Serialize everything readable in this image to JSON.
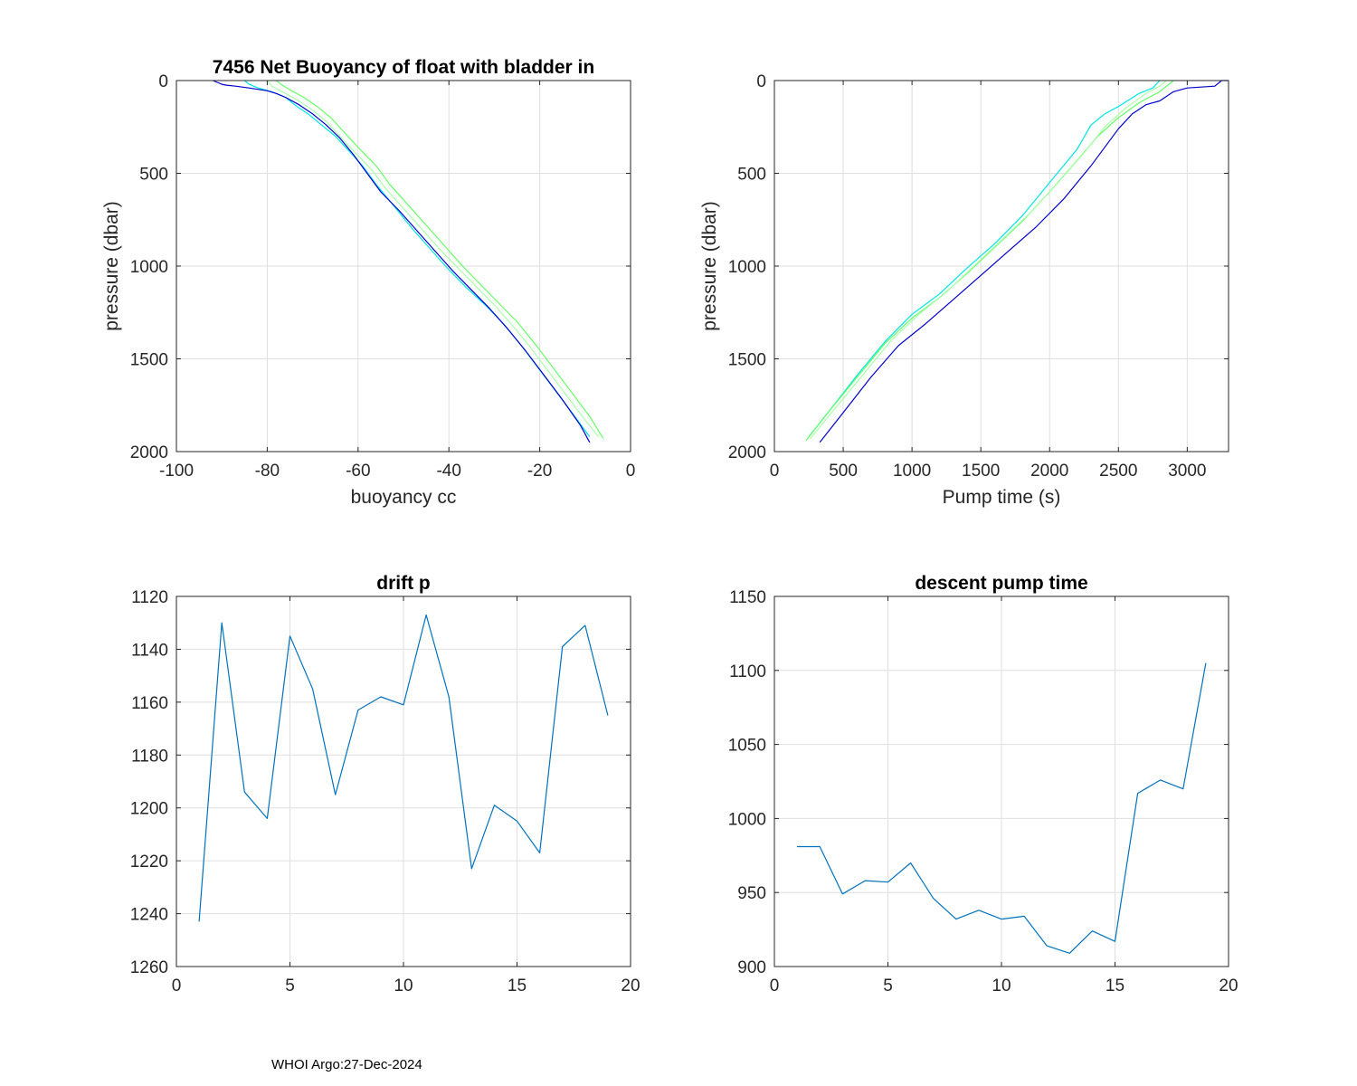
{
  "footer": "WHOI Argo:27-Dec-2024",
  "chart_data": [
    {
      "id": "buoyancy",
      "type": "line",
      "title": "7456 Net Buoyancy of float with bladder in",
      "xlabel": "buoyancy cc",
      "ylabel": "pressure (dbar)",
      "xlim": [
        -100,
        0
      ],
      "ylim": [
        0,
        2000
      ],
      "y_reversed": true,
      "grid": true,
      "xticks": [
        -100,
        -80,
        -60,
        -40,
        -20,
        0
      ],
      "yticks": [
        0,
        500,
        1000,
        1500,
        2000
      ],
      "series": [
        {
          "color": "#00e6e6",
          "points": [
            [
              -85,
              0
            ],
            [
              -84,
              20
            ],
            [
              -82,
              40
            ],
            [
              -79,
              60
            ],
            [
              -76,
              90
            ],
            [
              -74,
              130
            ],
            [
              -71,
              180
            ],
            [
              -68,
              240
            ],
            [
              -65,
              300
            ],
            [
              -62,
              380
            ],
            [
              -59,
              460
            ],
            [
              -56,
              560
            ],
            [
              -52,
              680
            ],
            [
              -48,
              800
            ],
            [
              -44,
              910
            ],
            [
              -40,
              1020
            ],
            [
              -36,
              1120
            ],
            [
              -32,
              1210
            ],
            [
              -28,
              1310
            ],
            [
              -24,
              1430
            ],
            [
              -20,
              1560
            ],
            [
              -16,
              1690
            ],
            [
              -12,
              1820
            ],
            [
              -9,
              1920
            ]
          ]
        },
        {
          "color": "#66ff66",
          "points": [
            [
              -78,
              0
            ],
            [
              -77,
              20
            ],
            [
              -75,
              50
            ],
            [
              -72,
              90
            ],
            [
              -69,
              140
            ],
            [
              -66,
              200
            ],
            [
              -63,
              280
            ],
            [
              -60,
              360
            ],
            [
              -56,
              460
            ],
            [
              -53,
              560
            ],
            [
              -49,
              670
            ],
            [
              -45,
              780
            ],
            [
              -41,
              890
            ],
            [
              -37,
              1000
            ],
            [
              -33,
              1100
            ],
            [
              -29,
              1200
            ],
            [
              -25,
              1300
            ],
            [
              -21,
              1420
            ],
            [
              -17,
              1550
            ],
            [
              -13,
              1680
            ],
            [
              -9,
              1810
            ],
            [
              -6,
              1930
            ]
          ]
        },
        {
          "color": "#aaffaa",
          "points": [
            [
              -80,
              0
            ],
            [
              -79,
              30
            ],
            [
              -76,
              70
            ],
            [
              -73,
              110
            ],
            [
              -70,
              160
            ],
            [
              -67,
              220
            ],
            [
              -64,
              300
            ],
            [
              -61,
              380
            ],
            [
              -57,
              480
            ],
            [
              -54,
              580
            ],
            [
              -50,
              690
            ],
            [
              -46,
              800
            ],
            [
              -42,
              910
            ],
            [
              -38,
              1010
            ],
            [
              -34,
              1110
            ],
            [
              -30,
              1210
            ],
            [
              -26,
              1320
            ],
            [
              -22,
              1440
            ],
            [
              -18,
              1570
            ],
            [
              -14,
              1700
            ],
            [
              -10,
              1830
            ],
            [
              -7,
              1920
            ]
          ]
        },
        {
          "color": "#0000cc",
          "points": [
            [
              -92,
              0
            ],
            [
              -91,
              10
            ],
            [
              -90,
              20
            ],
            [
              -89,
              25
            ],
            [
              -87,
              30
            ],
            [
              -84,
              40
            ],
            [
              -80,
              55
            ],
            [
              -78,
              70
            ],
            [
              -76,
              90
            ],
            [
              -73,
              130
            ],
            [
              -70,
              180
            ],
            [
              -67,
              240
            ],
            [
              -64,
              310
            ],
            [
              -61,
              400
            ],
            [
              -58,
              500
            ],
            [
              -55,
              600
            ],
            [
              -51,
              700
            ],
            [
              -47,
              810
            ],
            [
              -43,
              920
            ],
            [
              -39,
              1030
            ],
            [
              -35,
              1130
            ],
            [
              -31,
              1230
            ],
            [
              -27,
              1340
            ],
            [
              -23,
              1460
            ],
            [
              -19,
              1590
            ],
            [
              -15,
              1720
            ],
            [
              -11,
              1860
            ],
            [
              -9,
              1950
            ]
          ]
        }
      ]
    },
    {
      "id": "pumptime",
      "type": "line",
      "title": "",
      "xlabel": "Pump time (s)",
      "ylabel": "pressure (dbar)",
      "xlim": [
        0,
        3300
      ],
      "ylim": [
        0,
        2000
      ],
      "y_reversed": true,
      "grid": true,
      "xticks": [
        0,
        500,
        1000,
        1500,
        2000,
        2500,
        3000
      ],
      "yticks": [
        0,
        500,
        1000,
        1500,
        2000
      ],
      "series": [
        {
          "color": "#00e6e6",
          "points": [
            [
              250,
              1920
            ],
            [
              400,
              1780
            ],
            [
              600,
              1590
            ],
            [
              800,
              1410
            ],
            [
              1000,
              1260
            ],
            [
              1200,
              1150
            ],
            [
              1400,
              1010
            ],
            [
              1600,
              880
            ],
            [
              1800,
              730
            ],
            [
              2000,
              550
            ],
            [
              2200,
              370
            ],
            [
              2300,
              240
            ],
            [
              2400,
              180
            ],
            [
              2500,
              140
            ],
            [
              2650,
              70
            ],
            [
              2750,
              40
            ],
            [
              2800,
              0
            ]
          ]
        },
        {
          "color": "#66ff66",
          "points": [
            [
              230,
              1940
            ],
            [
              400,
              1780
            ],
            [
              600,
              1600
            ],
            [
              800,
              1420
            ],
            [
              1000,
              1280
            ],
            [
              1200,
              1170
            ],
            [
              1400,
              1040
            ],
            [
              1600,
              900
            ],
            [
              1800,
              760
            ],
            [
              2000,
              600
            ],
            [
              2200,
              430
            ],
            [
              2350,
              300
            ],
            [
              2500,
              200
            ],
            [
              2650,
              120
            ],
            [
              2800,
              60
            ],
            [
              2900,
              0
            ]
          ]
        },
        {
          "color": "#aaffaa",
          "points": [
            [
              260,
              1930
            ],
            [
              450,
              1760
            ],
            [
              650,
              1580
            ],
            [
              850,
              1400
            ],
            [
              1050,
              1260
            ],
            [
              1250,
              1140
            ],
            [
              1450,
              1000
            ],
            [
              1650,
              860
            ],
            [
              1850,
              720
            ],
            [
              2050,
              560
            ],
            [
              2250,
              390
            ],
            [
              2400,
              250
            ],
            [
              2550,
              150
            ],
            [
              2700,
              70
            ],
            [
              2800,
              30
            ],
            [
              2850,
              0
            ]
          ]
        },
        {
          "color": "#0000cc",
          "points": [
            [
              330,
              1950
            ],
            [
              500,
              1790
            ],
            [
              700,
              1600
            ],
            [
              900,
              1430
            ],
            [
              1100,
              1310
            ],
            [
              1300,
              1180
            ],
            [
              1500,
              1050
            ],
            [
              1700,
              920
            ],
            [
              1900,
              790
            ],
            [
              2100,
              640
            ],
            [
              2300,
              460
            ],
            [
              2500,
              260
            ],
            [
              2600,
              180
            ],
            [
              2700,
              130
            ],
            [
              2800,
              110
            ],
            [
              2900,
              60
            ],
            [
              3000,
              40
            ],
            [
              3200,
              30
            ],
            [
              3250,
              0
            ],
            [
              3300,
              0
            ]
          ]
        }
      ]
    },
    {
      "id": "driftp",
      "type": "line",
      "title": "drift p",
      "xlabel": "",
      "ylabel": "",
      "xlim": [
        0,
        20
      ],
      "ylim": [
        1120,
        1260
      ],
      "y_reversed": true,
      "grid": true,
      "xticks": [
        0,
        5,
        10,
        15,
        20
      ],
      "yticks": [
        1120,
        1140,
        1160,
        1180,
        1200,
        1220,
        1240,
        1260
      ],
      "series": [
        {
          "color": "#0072bd",
          "x": [
            1,
            2,
            3,
            4,
            5,
            6,
            7,
            8,
            9,
            10,
            11,
            12,
            13,
            14,
            15,
            16,
            17,
            18,
            19
          ],
          "y": [
            1243,
            1130,
            1194,
            1204,
            1135,
            1155,
            1195,
            1163,
            1158,
            1161,
            1127,
            1158,
            1223,
            1199,
            1205,
            1217,
            1139,
            1131,
            1165
          ]
        }
      ]
    },
    {
      "id": "descent",
      "type": "line",
      "title": "descent pump time",
      "xlabel": "",
      "ylabel": "",
      "xlim": [
        0,
        20
      ],
      "ylim": [
        900,
        1150
      ],
      "y_reversed": false,
      "grid": true,
      "xticks": [
        0,
        5,
        10,
        15,
        20
      ],
      "yticks": [
        900,
        950,
        1000,
        1050,
        1100,
        1150
      ],
      "series": [
        {
          "color": "#0072bd",
          "x": [
            1,
            2,
            3,
            4,
            5,
            6,
            7,
            8,
            9,
            10,
            11,
            12,
            13,
            14,
            15,
            16,
            17,
            18,
            19
          ],
          "y": [
            981,
            981,
            949,
            958,
            957,
            970,
            946,
            932,
            938,
            932,
            934,
            914,
            909,
            924,
            917,
            1017,
            1026,
            1020,
            1105
          ]
        }
      ]
    }
  ]
}
